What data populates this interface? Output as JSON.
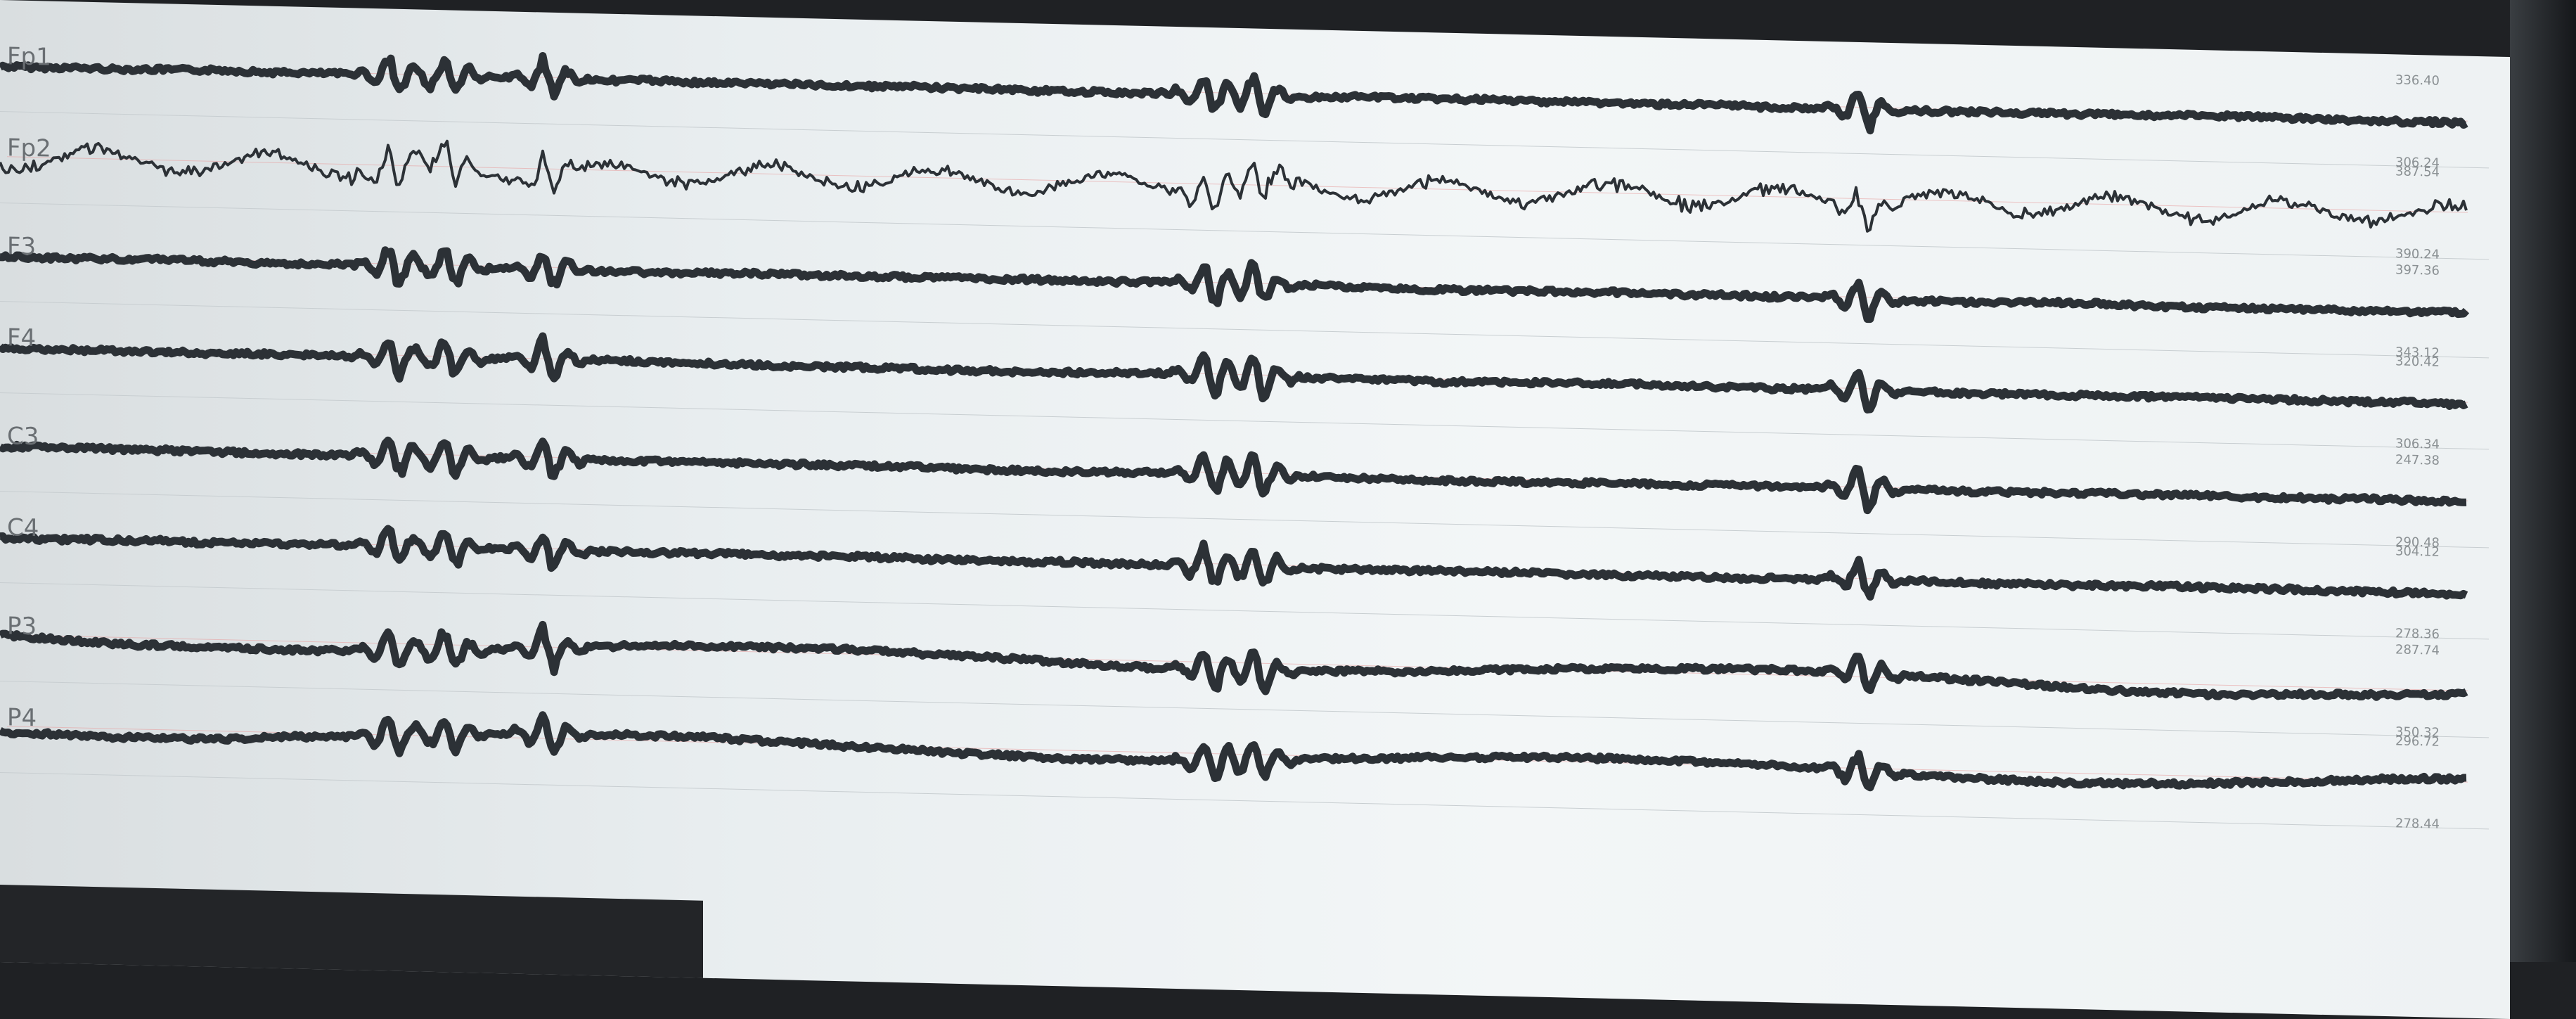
{
  "screen": {
    "background": "#eef2f3",
    "trace_color": "#2c3136"
  },
  "channels": [
    {
      "label": "Fp1",
      "upper": "336.40",
      "lower": "306.24"
    },
    {
      "label": "Fp2",
      "upper": "387.54",
      "lower": "390.24"
    },
    {
      "label": "F3",
      "upper": "397.36",
      "lower": "343.12"
    },
    {
      "label": "F4",
      "upper": "320.42",
      "lower": "306.34"
    },
    {
      "label": "C3",
      "upper": "247.38",
      "lower": "290.48"
    },
    {
      "label": "C4",
      "upper": "304.12",
      "lower": "278.36"
    },
    {
      "label": "P3",
      "upper": "287.74",
      "lower": "350.32"
    },
    {
      "label": "P4",
      "upper": "296.72",
      "lower": "278.44"
    }
  ]
}
